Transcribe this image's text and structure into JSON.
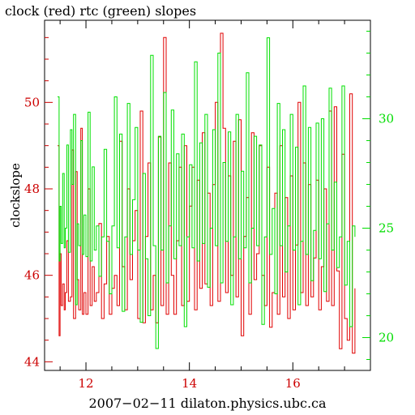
{
  "chart_data": {
    "type": "line",
    "title": "clock (red) rtc (green) slopes",
    "xlabel": "2007−02−11 dilaton.physics.ubc.ca",
    "ylabel": "clockslope",
    "xlim": [
      11.2,
      17.5
    ],
    "ylim_left": [
      43.8,
      51.9
    ],
    "ylim_right": [
      18.5,
      34.5
    ],
    "x_ticks": [
      12,
      14,
      16
    ],
    "x_tick_labels": [
      "12",
      "14",
      "16"
    ],
    "y_left_ticks": [
      44,
      46,
      48,
      50
    ],
    "y_left_tick_labels": [
      "44",
      "46",
      "48",
      "50"
    ],
    "y_right_ticks": [
      20,
      25,
      30
    ],
    "y_right_tick_labels": [
      "20",
      "25",
      "30"
    ],
    "grid": false,
    "legend": "none",
    "colors": {
      "clock": "#e00000",
      "rtc": "#00e000",
      "left_axis_text": "#cc0000",
      "right_axis_text": "#00dd00",
      "axes": "#000000"
    },
    "series": [
      {
        "axis": "left",
        "color": "#e00000",
        "x": [
          11.45,
          11.48,
          11.5,
          11.52,
          11.55,
          11.58,
          11.6,
          11.63,
          11.66,
          11.7,
          11.73,
          11.76,
          11.8,
          11.83,
          11.86,
          11.9,
          11.93,
          11.96,
          12.0,
          12.04,
          12.08,
          12.12,
          12.16,
          12.2,
          12.25,
          12.3,
          12.35,
          12.4,
          12.45,
          12.5,
          12.55,
          12.6,
          12.65,
          12.7,
          12.75,
          12.8,
          12.85,
          12.9,
          12.95,
          13.0,
          13.05,
          13.1,
          13.15,
          13.2,
          13.25,
          13.3,
          13.35,
          13.4,
          13.45,
          13.5,
          13.55,
          13.6,
          13.65,
          13.7,
          13.75,
          13.8,
          13.85,
          13.9,
          13.95,
          14.0,
          14.05,
          14.1,
          14.15,
          14.2,
          14.25,
          14.3,
          14.35,
          14.4,
          14.45,
          14.5,
          14.55,
          14.6,
          14.65,
          14.7,
          14.75,
          14.8,
          14.85,
          14.9,
          14.95,
          15.0,
          15.05,
          15.1,
          15.15,
          15.2,
          15.25,
          15.3,
          15.35,
          15.4,
          15.45,
          15.5,
          15.55,
          15.6,
          15.65,
          15.7,
          15.75,
          15.8,
          15.85,
          15.9,
          15.95,
          16.0,
          16.05,
          16.1,
          16.15,
          16.2,
          16.25,
          16.3,
          16.35,
          16.4,
          16.45,
          16.5,
          16.55,
          16.6,
          16.65,
          16.7,
          16.75,
          16.8,
          16.85,
          16.9,
          16.95,
          17.0,
          17.05,
          17.1,
          17.15,
          17.2
        ],
        "values": [
          49.0,
          44.6,
          46.5,
          45.3,
          45.8,
          45.2,
          45.6,
          46.8,
          45.4,
          45.5,
          48.9,
          45.0,
          48.4,
          45.9,
          45.2,
          49.4,
          45.1,
          45.6,
          45.1,
          48.0,
          45.3,
          46.2,
          45.4,
          45.6,
          47.2,
          45.0,
          45.8,
          46.9,
          45.1,
          45.7,
          46.0,
          45.3,
          49.1,
          46.2,
          45.2,
          48.0,
          45.9,
          46.8,
          47.5,
          45.0,
          49.8,
          44.9,
          46.9,
          48.6,
          45.2,
          46.0,
          44.9,
          49.2,
          45.3,
          51.5,
          45.1,
          48.6,
          46.0,
          45.1,
          46.8,
          48.5,
          45.3,
          49.0,
          45.4,
          47.6,
          48.5,
          45.2,
          48.2,
          45.7,
          49.3,
          45.8,
          47.9,
          45.3,
          48.1,
          50.0,
          45.4,
          51.6,
          49.4,
          45.6,
          48.3,
          46.0,
          49.1,
          45.5,
          49.6,
          44.6,
          46.9,
          47.8,
          45.1,
          49.3,
          45.9,
          46.5,
          49.0,
          46.0,
          45.3,
          48.5,
          44.8,
          45.6,
          47.9,
          45.1,
          49.0,
          45.5,
          47.8,
          45.0,
          48.3,
          45.2,
          46.7,
          50.0,
          45.6,
          48.6,
          45.3,
          48.1,
          45.5,
          46.4,
          48.2,
          45.2,
          46.2,
          48.0,
          45.4,
          49.8,
          45.3,
          49.9,
          46.1,
          44.3,
          48.8,
          45.0,
          44.5,
          50.2,
          44.2,
          45.7
        ]
      },
      {
        "axis": "right",
        "color": "#00e000",
        "x": [
          11.45,
          11.48,
          11.5,
          11.52,
          11.55,
          11.58,
          11.6,
          11.63,
          11.66,
          11.7,
          11.73,
          11.76,
          11.8,
          11.83,
          11.86,
          11.9,
          11.93,
          11.96,
          12.0,
          12.04,
          12.08,
          12.12,
          12.16,
          12.2,
          12.25,
          12.3,
          12.35,
          12.4,
          12.45,
          12.5,
          12.55,
          12.6,
          12.65,
          12.7,
          12.75,
          12.8,
          12.85,
          12.9,
          12.95,
          13.0,
          13.05,
          13.1,
          13.15,
          13.2,
          13.25,
          13.3,
          13.35,
          13.4,
          13.45,
          13.5,
          13.55,
          13.6,
          13.65,
          13.7,
          13.75,
          13.8,
          13.85,
          13.9,
          13.95,
          14.0,
          14.05,
          14.1,
          14.15,
          14.2,
          14.25,
          14.3,
          14.35,
          14.4,
          14.45,
          14.5,
          14.55,
          14.6,
          14.65,
          14.7,
          14.75,
          14.8,
          14.85,
          14.9,
          14.95,
          15.0,
          15.05,
          15.1,
          15.15,
          15.2,
          15.25,
          15.3,
          15.35,
          15.4,
          15.45,
          15.5,
          15.55,
          15.6,
          15.65,
          15.7,
          15.75,
          15.8,
          15.85,
          15.9,
          15.95,
          16.0,
          16.05,
          16.1,
          16.15,
          16.2,
          16.25,
          16.3,
          16.35,
          16.4,
          16.45,
          16.5,
          16.55,
          16.6,
          16.65,
          16.7,
          16.75,
          16.8,
          16.85,
          16.9,
          16.95,
          17.0,
          17.05,
          17.1,
          17.15,
          17.2
        ],
        "values": [
          31.0,
          23.5,
          26.0,
          24.3,
          27.5,
          24.1,
          25.0,
          28.8,
          23.9,
          29.5,
          27.0,
          30.2,
          21.5,
          25.2,
          24.2,
          29.0,
          23.8,
          25.6,
          23.7,
          30.3,
          23.5,
          27.8,
          24.0,
          25.1,
          22.8,
          24.6,
          28.6,
          24.4,
          22.0,
          25.1,
          31.0,
          24.1,
          29.3,
          21.2,
          24.6,
          30.7,
          23.8,
          26.3,
          29.6,
          24.0,
          20.7,
          27.5,
          23.6,
          21.0,
          32.9,
          24.2,
          19.5,
          29.2,
          24.0,
          31.2,
          22.5,
          25.1,
          30.4,
          23.6,
          28.4,
          24.2,
          29.3,
          20.5,
          24.6,
          27.9,
          24.1,
          32.6,
          23.5,
          28.9,
          24.3,
          30.2,
          22.3,
          25.0,
          29.5,
          24.2,
          33.0,
          22.5,
          28.0,
          24.4,
          29.4,
          21.5,
          24.6,
          30.2,
          23.6,
          27.6,
          24.1,
          32.1,
          22.5,
          25.0,
          29.2,
          24.2,
          28.8,
          20.6,
          24.6,
          33.7,
          23.8,
          25.9,
          22.0,
          30.7,
          24.2,
          29.5,
          23.0,
          25.1,
          30.2,
          24.0,
          28.7,
          21.5,
          24.4,
          31.5,
          23.8,
          29.6,
          22.6,
          24.9,
          29.8,
          23.6,
          30.0,
          22.1,
          25.2,
          31.4,
          24.0,
          27.1,
          23.2,
          24.6,
          31.5,
          22.4,
          24.4,
          20.5,
          25.1,
          24.6
        ]
      }
    ]
  }
}
